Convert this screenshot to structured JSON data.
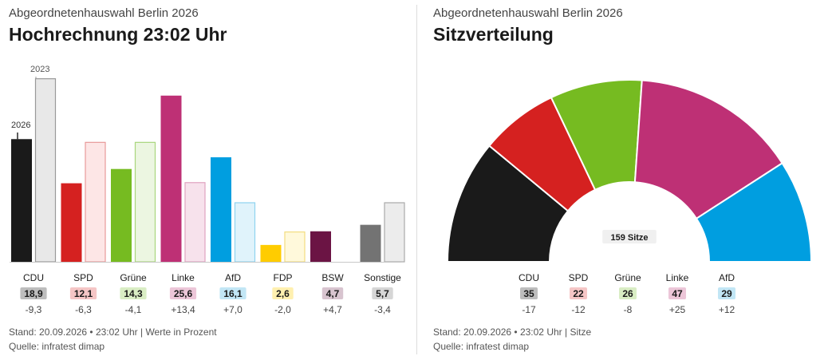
{
  "left": {
    "subtitle": "Abgeordnetenhauswahl Berlin 2026",
    "title": "Hochrechnung 23:02 Uhr",
    "footer_stand": "Stand: 20.09.2026 • 23:02 Uhr | Werte in Prozent",
    "footer_source": "Quelle: infratest dimap"
  },
  "right": {
    "subtitle": "Abgeordnetenhauswahl Berlin 2026",
    "title": "Sitzverteilung",
    "footer_stand": "Stand: 20.09.2026 • 23:02 Uhr | Sitze",
    "footer_source": "Quelle: infratest dimap"
  },
  "chart_data": [
    {
      "type": "bar",
      "title": "Hochrechnung 23:02 Uhr",
      "subtitle": "Abgeordnetenhauswahl Berlin 2026",
      "categories": [
        "CDU",
        "SPD",
        "Grüne",
        "Linke",
        "AfD",
        "FDP",
        "BSW",
        "Sonstige"
      ],
      "series": [
        {
          "name": "2026",
          "values": [
            18.9,
            12.1,
            14.3,
            25.6,
            16.1,
            2.6,
            4.7,
            5.7
          ]
        },
        {
          "name": "2023",
          "values": [
            28.2,
            18.4,
            18.4,
            12.2,
            9.1,
            4.6,
            0,
            9.1
          ]
        }
      ],
      "value_labels": [
        "18,9",
        "12,1",
        "14,3",
        "25,6",
        "16,1",
        "2,6",
        "4,7",
        "5,7"
      ],
      "diff_labels": [
        "-9,3",
        "-6,3",
        "-4,1",
        "+13,4",
        "+7,0",
        "-2,0",
        "+4,7",
        "-3,4"
      ],
      "series_labels": {
        "current": "2026",
        "previous": "2023"
      },
      "colors": [
        "#1a1a1a",
        "#d52120",
        "#76bb21",
        "#be3075",
        "#009ee0",
        "#ffcc00",
        "#6b1444",
        "#737373"
      ],
      "light_colors": [
        "#e8e8e8",
        "#fde6e6",
        "#ecf6e1",
        "#f7e2ec",
        "#e0f3fb",
        "#fff9db",
        "#eee3ea",
        "#ececec"
      ],
      "border_colors": [
        "#999999",
        "#e89a9a",
        "#a9d67d",
        "#e0a3c0",
        "#8fd3ef",
        "#f2dd80",
        "#c09aae",
        "#aaaaaa"
      ],
      "badge_colors": [
        "#bdbdbd",
        "#f5c6c6",
        "#d9edc4",
        "#ecc6d8",
        "#c2e6f5",
        "#fff0b0",
        "#d8c4cf",
        "#d6d6d6"
      ],
      "ylim": [
        0,
        30
      ]
    },
    {
      "type": "pie",
      "title": "Sitzverteilung",
      "subtitle": "Abgeordnetenhauswahl Berlin 2026",
      "center_label": "159 Sitze",
      "categories": [
        "CDU",
        "SPD",
        "Grüne",
        "Linke",
        "AfD"
      ],
      "values": [
        35,
        22,
        26,
        47,
        29
      ],
      "diff_labels": [
        "-17",
        "-12",
        "-8",
        "+25",
        "+12"
      ],
      "colors": [
        "#1a1a1a",
        "#d52120",
        "#76bb21",
        "#be3075",
        "#009ee0"
      ],
      "badge_colors": [
        "#bdbdbd",
        "#f5c6c6",
        "#d9edc4",
        "#ecc6d8",
        "#c2e6f5"
      ]
    }
  ]
}
